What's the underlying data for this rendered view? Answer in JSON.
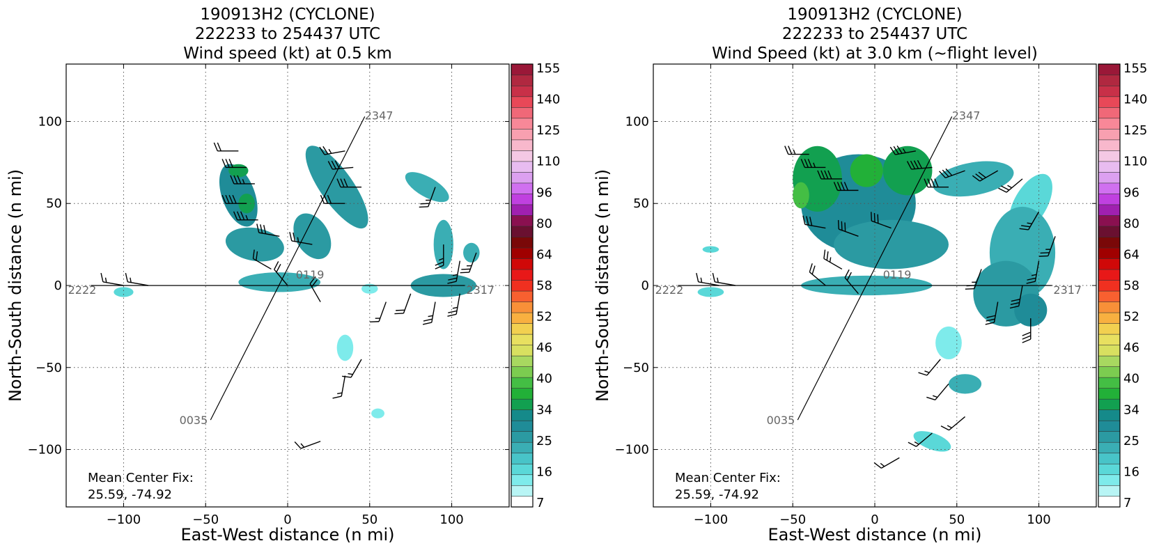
{
  "panels": [
    {
      "title_lines": [
        "190913H2 (CYCLONE)",
        "222233 to 254437 UTC",
        "Wind speed (kt) at 0.5 km"
      ],
      "xlabel": "East-West distance (n mi)",
      "ylabel": "North-South distance (n mi)",
      "center_fix": [
        "Mean Center Fix:",
        "25.59, -74.92"
      ]
    },
    {
      "title_lines": [
        "190913H2 (CYCLONE)",
        "222233 to 254437 UTC",
        "Wind Speed (kt) at 3.0 km (~flight level)"
      ],
      "xlabel": "East-West distance (n mi)",
      "ylabel": "North-South distance (n mi)",
      "center_fix": [
        "Mean Center Fix:",
        "25.59, -74.92"
      ]
    }
  ],
  "chart_data": [
    {
      "type": "heatmap",
      "title": "190913H2 (CYCLONE) 222233 to 254437 UTC Wind speed (kt) at 0.5 km",
      "xlabel": "East-West distance (n mi)",
      "ylabel": "North-South distance (n mi)",
      "xlim": [
        -135,
        135
      ],
      "ylim": [
        -135,
        135
      ],
      "xticks": [
        -100,
        -50,
        0,
        50,
        100
      ],
      "yticks": [
        -100,
        -50,
        0,
        50,
        100
      ],
      "grid": true,
      "flight_track": [
        {
          "label": "2222",
          "x": -120,
          "y": 0
        },
        {
          "label": "0119",
          "x": 5,
          "y": 3
        },
        {
          "label": "2317",
          "x": 108,
          "y": 0
        },
        {
          "label": "2347",
          "x": 47,
          "y": 103
        },
        {
          "label": "0035",
          "x": -47,
          "y": -82
        }
      ],
      "wind_regions": [
        {
          "x": -30,
          "y": 55,
          "rx": 10,
          "ry": 20,
          "kt": 28,
          "angle": 20
        },
        {
          "x": -20,
          "y": 25,
          "rx": 18,
          "ry": 10,
          "kt": 25,
          "angle": -10
        },
        {
          "x": 30,
          "y": 60,
          "rx": 10,
          "ry": 30,
          "kt": 25,
          "angle": 35
        },
        {
          "x": 15,
          "y": 30,
          "rx": 10,
          "ry": 15,
          "kt": 25,
          "angle": 30
        },
        {
          "x": -25,
          "y": 50,
          "rx": 5,
          "ry": 6,
          "kt": 34,
          "angle": 0
        },
        {
          "x": -30,
          "y": 70,
          "rx": 6,
          "ry": 4,
          "kt": 34,
          "angle": 0
        },
        {
          "x": -5,
          "y": 2,
          "rx": 25,
          "ry": 6,
          "kt": 22,
          "angle": 0
        },
        {
          "x": 95,
          "y": 0,
          "rx": 20,
          "ry": 7,
          "kt": 25,
          "angle": 0
        },
        {
          "x": 95,
          "y": 25,
          "rx": 6,
          "ry": 15,
          "kt": 22,
          "angle": 0
        },
        {
          "x": 85,
          "y": 60,
          "rx": 15,
          "ry": 6,
          "kt": 22,
          "angle": -30
        },
        {
          "x": 112,
          "y": 20,
          "rx": 5,
          "ry": 6,
          "kt": 22,
          "angle": 0
        },
        {
          "x": -100,
          "y": -4,
          "rx": 6,
          "ry": 3,
          "kt": 18,
          "angle": 0
        },
        {
          "x": 35,
          "y": -38,
          "rx": 5,
          "ry": 8,
          "kt": 14,
          "angle": 0
        },
        {
          "x": 50,
          "y": -2,
          "rx": 5,
          "ry": 3,
          "kt": 14,
          "angle": 0
        },
        {
          "x": 55,
          "y": -78,
          "rx": 4,
          "ry": 3,
          "kt": 14,
          "angle": 0
        }
      ],
      "barbs": [
        {
          "x": -30,
          "y": 82,
          "dir": 270,
          "kt": 20
        },
        {
          "x": -25,
          "y": 72,
          "dir": 270,
          "kt": 30
        },
        {
          "x": -20,
          "y": 62,
          "dir": 270,
          "kt": 35
        },
        {
          "x": -25,
          "y": 50,
          "dir": 270,
          "kt": 40
        },
        {
          "x": -18,
          "y": 40,
          "dir": 270,
          "kt": 35
        },
        {
          "x": -5,
          "y": 30,
          "dir": 280,
          "kt": 30
        },
        {
          "x": 15,
          "y": 25,
          "dir": 280,
          "kt": 25
        },
        {
          "x": 35,
          "y": 82,
          "dir": 260,
          "kt": 25
        },
        {
          "x": 40,
          "y": 72,
          "dir": 265,
          "kt": 30
        },
        {
          "x": 45,
          "y": 60,
          "dir": 270,
          "kt": 30
        },
        {
          "x": 35,
          "y": 50,
          "dir": 270,
          "kt": 30
        },
        {
          "x": -10,
          "y": 10,
          "dir": 300,
          "kt": 20
        },
        {
          "x": 0,
          "y": 0,
          "dir": 320,
          "kt": 20
        },
        {
          "x": 20,
          "y": -10,
          "dir": 330,
          "kt": 20
        },
        {
          "x": 90,
          "y": 60,
          "dir": 200,
          "kt": 25
        },
        {
          "x": 95,
          "y": 25,
          "dir": 180,
          "kt": 25
        },
        {
          "x": 105,
          "y": 15,
          "dir": 190,
          "kt": 25
        },
        {
          "x": 115,
          "y": 20,
          "dir": 200,
          "kt": 25
        },
        {
          "x": 75,
          "y": -5,
          "dir": 200,
          "kt": 20
        },
        {
          "x": 90,
          "y": -10,
          "dir": 190,
          "kt": 25
        },
        {
          "x": 105,
          "y": -5,
          "dir": 190,
          "kt": 25
        },
        {
          "x": -100,
          "y": 0,
          "dir": 280,
          "kt": 15
        },
        {
          "x": -85,
          "y": 0,
          "dir": 280,
          "kt": 15
        },
        {
          "x": 45,
          "y": -45,
          "dir": 210,
          "kt": 15
        },
        {
          "x": 35,
          "y": -55,
          "dir": 190,
          "kt": 15
        },
        {
          "x": 60,
          "y": -10,
          "dir": 200,
          "kt": 15
        },
        {
          "x": 20,
          "y": -95,
          "dir": 250,
          "kt": 15
        }
      ]
    },
    {
      "type": "heatmap",
      "title": "190913H2 (CYCLONE) 222233 to 254437 UTC Wind Speed (kt) at 3.0 km (~flight level)",
      "xlabel": "East-West distance (n mi)",
      "ylabel": "North-South distance (n mi)",
      "xlim": [
        -135,
        135
      ],
      "ylim": [
        -135,
        135
      ],
      "xticks": [
        -100,
        -50,
        0,
        50,
        100
      ],
      "yticks": [
        -100,
        -50,
        0,
        50,
        100
      ],
      "grid": true,
      "flight_track": [
        {
          "label": "2222",
          "x": -120,
          "y": 0
        },
        {
          "label": "0119",
          "x": 5,
          "y": 3
        },
        {
          "label": "2317",
          "x": 108,
          "y": 0
        },
        {
          "label": "2347",
          "x": 47,
          "y": 103
        },
        {
          "label": "0035",
          "x": -47,
          "y": -82
        }
      ],
      "wind_regions": [
        {
          "x": -10,
          "y": 50,
          "rx": 35,
          "ry": 30,
          "kt": 28,
          "angle": 0
        },
        {
          "x": -35,
          "y": 65,
          "rx": 15,
          "ry": 20,
          "kt": 34,
          "angle": 0
        },
        {
          "x": 20,
          "y": 70,
          "rx": 15,
          "ry": 15,
          "kt": 34,
          "angle": 0
        },
        {
          "x": -5,
          "y": 70,
          "rx": 10,
          "ry": 10,
          "kt": 37,
          "angle": 0
        },
        {
          "x": -45,
          "y": 55,
          "rx": 5,
          "ry": 8,
          "kt": 40,
          "angle": 0
        },
        {
          "x": 10,
          "y": 25,
          "rx": 35,
          "ry": 15,
          "kt": 25,
          "angle": 0
        },
        {
          "x": 60,
          "y": 65,
          "rx": 25,
          "ry": 10,
          "kt": 22,
          "angle": 10
        },
        {
          "x": 95,
          "y": 50,
          "rx": 10,
          "ry": 20,
          "kt": 18,
          "angle": -30
        },
        {
          "x": 90,
          "y": 20,
          "rx": 20,
          "ry": 28,
          "kt": 22,
          "angle": 0
        },
        {
          "x": 80,
          "y": -5,
          "rx": 20,
          "ry": 20,
          "kt": 25,
          "angle": 0
        },
        {
          "x": 95,
          "y": -15,
          "rx": 10,
          "ry": 10,
          "kt": 28,
          "angle": 0
        },
        {
          "x": -5,
          "y": 0,
          "rx": 40,
          "ry": 6,
          "kt": 22,
          "angle": 0
        },
        {
          "x": -100,
          "y": -4,
          "rx": 8,
          "ry": 3,
          "kt": 16,
          "angle": 0
        },
        {
          "x": 45,
          "y": -35,
          "rx": 8,
          "ry": 10,
          "kt": 14,
          "angle": 0
        },
        {
          "x": 55,
          "y": -60,
          "rx": 10,
          "ry": 6,
          "kt": 22,
          "angle": 0
        },
        {
          "x": 35,
          "y": -95,
          "rx": 12,
          "ry": 5,
          "kt": 18,
          "angle": -20
        },
        {
          "x": -100,
          "y": 22,
          "rx": 5,
          "ry": 2,
          "kt": 18,
          "angle": 0
        }
      ],
      "barbs": [
        {
          "x": -40,
          "y": 80,
          "dir": 270,
          "kt": 25
        },
        {
          "x": -30,
          "y": 72,
          "dir": 270,
          "kt": 35
        },
        {
          "x": -20,
          "y": 65,
          "dir": 270,
          "kt": 40
        },
        {
          "x": -10,
          "y": 58,
          "dir": 270,
          "kt": 40
        },
        {
          "x": 25,
          "y": 82,
          "dir": 260,
          "kt": 35
        },
        {
          "x": 35,
          "y": 72,
          "dir": 265,
          "kt": 40
        },
        {
          "x": 45,
          "y": 60,
          "dir": 270,
          "kt": 40
        },
        {
          "x": 55,
          "y": 70,
          "dir": 250,
          "kt": 30
        },
        {
          "x": 75,
          "y": 70,
          "dir": 240,
          "kt": 30
        },
        {
          "x": 90,
          "y": 65,
          "dir": 230,
          "kt": 25
        },
        {
          "x": 100,
          "y": 45,
          "dir": 210,
          "kt": 25
        },
        {
          "x": 110,
          "y": 30,
          "dir": 200,
          "kt": 25
        },
        {
          "x": 100,
          "y": 15,
          "dir": 190,
          "kt": 25
        },
        {
          "x": 90,
          "y": 0,
          "dir": 190,
          "kt": 30
        },
        {
          "x": 95,
          "y": -20,
          "dir": 180,
          "kt": 30
        },
        {
          "x": 75,
          "y": -10,
          "dir": 190,
          "kt": 30
        },
        {
          "x": 65,
          "y": 10,
          "dir": 200,
          "kt": 25
        },
        {
          "x": -30,
          "y": 35,
          "dir": 280,
          "kt": 30
        },
        {
          "x": -10,
          "y": 30,
          "dir": 290,
          "kt": 30
        },
        {
          "x": 10,
          "y": 35,
          "dir": 290,
          "kt": 30
        },
        {
          "x": -20,
          "y": 10,
          "dir": 300,
          "kt": 25
        },
        {
          "x": -30,
          "y": 0,
          "dir": 310,
          "kt": 20
        },
        {
          "x": -10,
          "y": -5,
          "dir": 320,
          "kt": 20
        },
        {
          "x": -95,
          "y": 0,
          "dir": 280,
          "kt": 15
        },
        {
          "x": -85,
          "y": 0,
          "dir": 280,
          "kt": 15
        },
        {
          "x": 40,
          "y": -45,
          "dir": 220,
          "kt": 15
        },
        {
          "x": 45,
          "y": -60,
          "dir": 220,
          "kt": 15
        },
        {
          "x": 55,
          "y": -80,
          "dir": 230,
          "kt": 15
        },
        {
          "x": 35,
          "y": -90,
          "dir": 230,
          "kt": 15
        },
        {
          "x": 15,
          "y": -105,
          "dir": 240,
          "kt": 15
        }
      ]
    }
  ],
  "colorbar": {
    "labels": [
      "7",
      "16",
      "25",
      "34",
      "40",
      "46",
      "52",
      "58",
      "64",
      "80",
      "96",
      "110",
      "125",
      "140",
      "155"
    ],
    "colors": [
      "#ffffff",
      "#b8f5f5",
      "#7eebeb",
      "#5ad8d8",
      "#48c4c8",
      "#3aaeb4",
      "#2b9aa2",
      "#1f8c98",
      "#158a8a",
      "#12a050",
      "#22b038",
      "#44be44",
      "#7ccc50",
      "#a8d860",
      "#d8e060",
      "#e8e060",
      "#f2d050",
      "#f8b040",
      "#f89038",
      "#f86030",
      "#f03020",
      "#e81818",
      "#d00808",
      "#a00000",
      "#7a0808",
      "#6a1030",
      "#8a1050",
      "#a020b0",
      "#c040e0",
      "#d070f0",
      "#dca0f0",
      "#e8bcf0",
      "#f4c8e4",
      "#f8b8cc",
      "#f8a0b0",
      "#f88898",
      "#f06878",
      "#e84858",
      "#c83048",
      "#b02840",
      "#9a1838"
    ]
  }
}
